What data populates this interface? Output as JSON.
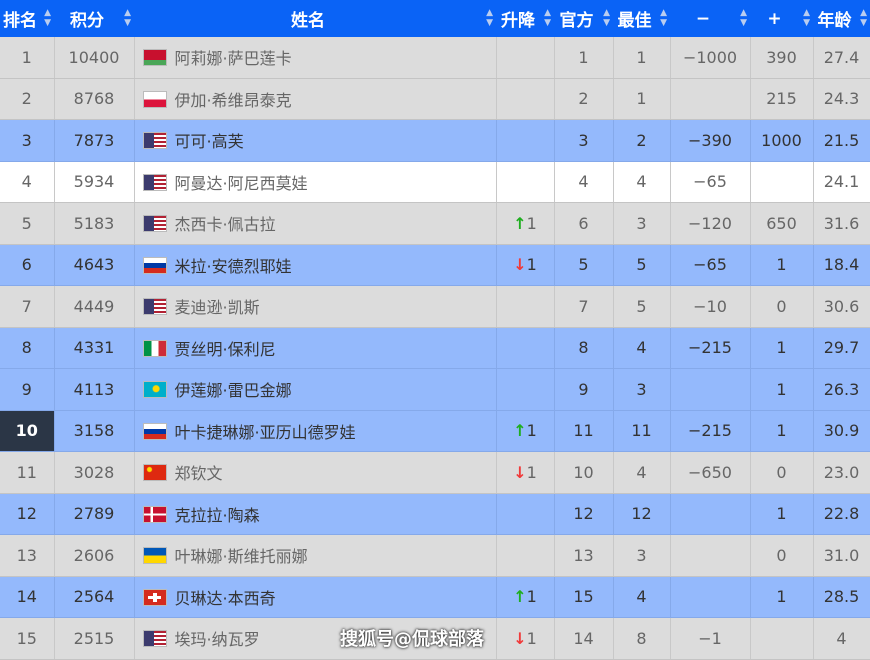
{
  "headers": [
    "排名",
    "积分",
    "姓名",
    "升降",
    "官方",
    "最佳",
    "−",
    "+",
    "年龄"
  ],
  "rows": [
    {
      "rank": "1",
      "points": "10400",
      "flag": "belarus",
      "name": "阿莉娜·萨巴莲卡",
      "change": "",
      "dir": "",
      "official": "1",
      "best": "1",
      "minus": "−1000",
      "plus": "390",
      "age": "27.4",
      "style": "gray"
    },
    {
      "rank": "2",
      "points": "8768",
      "flag": "poland",
      "name": "伊加·希维昂泰克",
      "change": "",
      "dir": "",
      "official": "2",
      "best": "1",
      "minus": "",
      "plus": "215",
      "age": "24.3",
      "style": "gray"
    },
    {
      "rank": "3",
      "points": "7873",
      "flag": "usa",
      "name": "可可·高芙",
      "change": "",
      "dir": "",
      "official": "3",
      "best": "2",
      "minus": "−390",
      "plus": "1000",
      "age": "21.5",
      "style": "blue"
    },
    {
      "rank": "4",
      "points": "5934",
      "flag": "usa",
      "name": "阿曼达·阿尼西莫娃",
      "change": "",
      "dir": "",
      "official": "4",
      "best": "4",
      "minus": "−65",
      "plus": "",
      "age": "24.1",
      "style": "white"
    },
    {
      "rank": "5",
      "points": "5183",
      "flag": "usa",
      "name": "杰西卡·佩古拉",
      "change": "1",
      "dir": "up",
      "official": "6",
      "best": "3",
      "minus": "−120",
      "plus": "650",
      "age": "31.6",
      "style": "gray"
    },
    {
      "rank": "6",
      "points": "4643",
      "flag": "russia",
      "name": "米拉·安德烈耶娃",
      "change": "1",
      "dir": "down",
      "official": "5",
      "best": "5",
      "minus": "−65",
      "plus": "1",
      "age": "18.4",
      "style": "blue"
    },
    {
      "rank": "7",
      "points": "4449",
      "flag": "usa",
      "name": "麦迪逊·凯斯",
      "change": "",
      "dir": "",
      "official": "7",
      "best": "5",
      "minus": "−10",
      "plus": "0",
      "age": "30.6",
      "style": "gray"
    },
    {
      "rank": "8",
      "points": "4331",
      "flag": "italy",
      "name": "贾丝明·保利尼",
      "change": "",
      "dir": "",
      "official": "8",
      "best": "4",
      "minus": "−215",
      "plus": "1",
      "age": "29.7",
      "style": "blue"
    },
    {
      "rank": "9",
      "points": "4113",
      "flag": "kazakhstan",
      "name": "伊莲娜·雷巴金娜",
      "change": "",
      "dir": "",
      "official": "9",
      "best": "3",
      "minus": "",
      "plus": "1",
      "age": "26.3",
      "style": "blue"
    },
    {
      "rank": "10",
      "points": "3158",
      "flag": "russia",
      "name": "叶卡捷琳娜·亚历山德罗娃",
      "change": "1",
      "dir": "up",
      "official": "11",
      "best": "11",
      "minus": "−215",
      "plus": "1",
      "age": "30.9",
      "style": "blue",
      "highlight": true
    },
    {
      "rank": "11",
      "points": "3028",
      "flag": "china",
      "name": "郑钦文",
      "change": "1",
      "dir": "down",
      "official": "10",
      "best": "4",
      "minus": "−650",
      "plus": "0",
      "age": "23.0",
      "style": "gray"
    },
    {
      "rank": "12",
      "points": "2789",
      "flag": "denmark",
      "name": "克拉拉·陶森",
      "change": "",
      "dir": "",
      "official": "12",
      "best": "12",
      "minus": "",
      "plus": "1",
      "age": "22.8",
      "style": "blue"
    },
    {
      "rank": "13",
      "points": "2606",
      "flag": "ukraine",
      "name": "叶琳娜·斯维托丽娜",
      "change": "",
      "dir": "",
      "official": "13",
      "best": "3",
      "minus": "",
      "plus": "0",
      "age": "31.0",
      "style": "gray"
    },
    {
      "rank": "14",
      "points": "2564",
      "flag": "switzerland",
      "name": "贝琳达·本西奇",
      "change": "1",
      "dir": "up",
      "official": "15",
      "best": "4",
      "minus": "",
      "plus": "1",
      "age": "28.5",
      "style": "blue"
    },
    {
      "rank": "15",
      "points": "2515",
      "flag": "usa",
      "name": "埃玛·纳瓦罗",
      "change": "1",
      "dir": "down",
      "official": "14",
      "best": "8",
      "minus": "−1",
      "plus": "",
      "age": "4",
      "style": "gray"
    }
  ],
  "watermark": "搜狐号@侃球部落"
}
